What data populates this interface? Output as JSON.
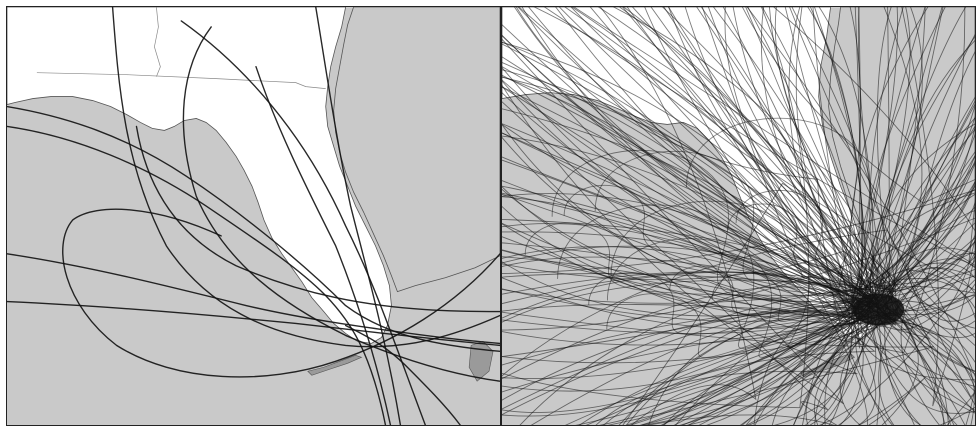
{
  "figure": {
    "panels": [
      {
        "id": "left",
        "description_visible_text": ""
      },
      {
        "id": "right",
        "description_visible_text": ""
      }
    ],
    "colors": {
      "water": "#c9c9c9",
      "land": "#ffffff",
      "border": "#222222",
      "track": "#111111",
      "island": "#9a9a9a",
      "boundary": "#888888"
    },
    "left_track_count": 12,
    "right_track_count": 160
  }
}
